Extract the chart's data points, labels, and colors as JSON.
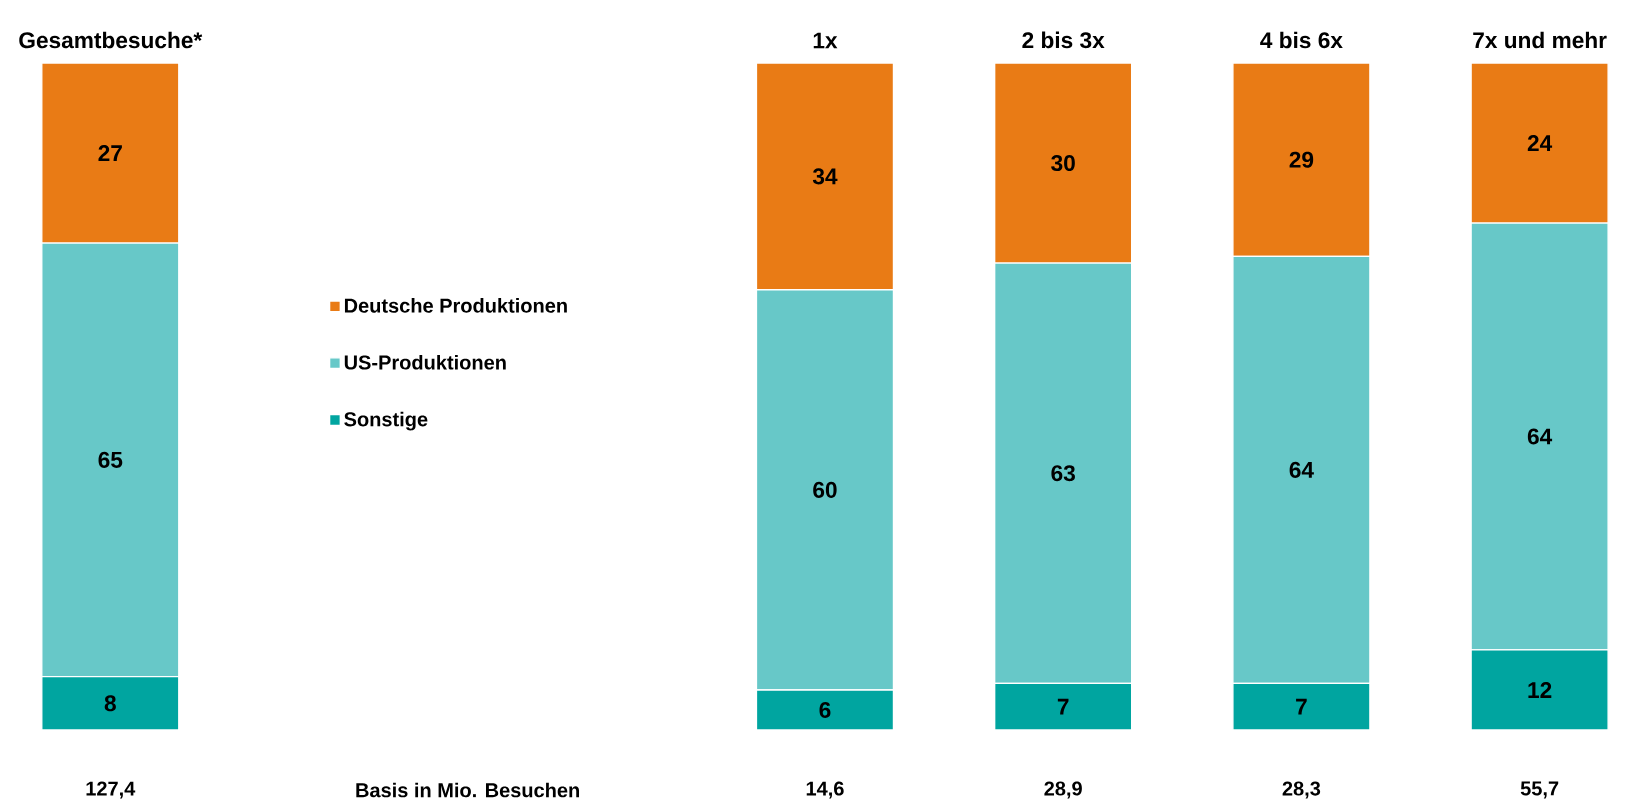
{
  "chart_data": {
    "type": "bar",
    "stacked": true,
    "data_labels": true,
    "legend": "center left",
    "ylim": [
      0,
      100
    ],
    "categories": [
      "Gesamtbesuche*",
      null,
      null,
      "1x",
      "2 bis 3x",
      "4 bis 6x",
      "7x und mehr"
    ],
    "series": [
      {
        "name": "Sonstige",
        "color": "#00a5a0",
        "values": [
          8,
          null,
          null,
          6,
          7,
          7,
          12
        ]
      },
      {
        "name": "US-Produktionen",
        "color": "#67c8c8",
        "values": [
          65,
          null,
          null,
          60,
          63,
          64,
          64
        ]
      },
      {
        "name": "Deutsche Produktionen",
        "color": "#e97b15",
        "values": [
          27,
          null,
          null,
          34,
          30,
          29,
          24
        ]
      }
    ],
    "annotations": [
      "127,4",
      "Basis in Mio. Besuchen",
      "14,6",
      "28,9",
      "28,3",
      "55,7"
    ]
  }
}
